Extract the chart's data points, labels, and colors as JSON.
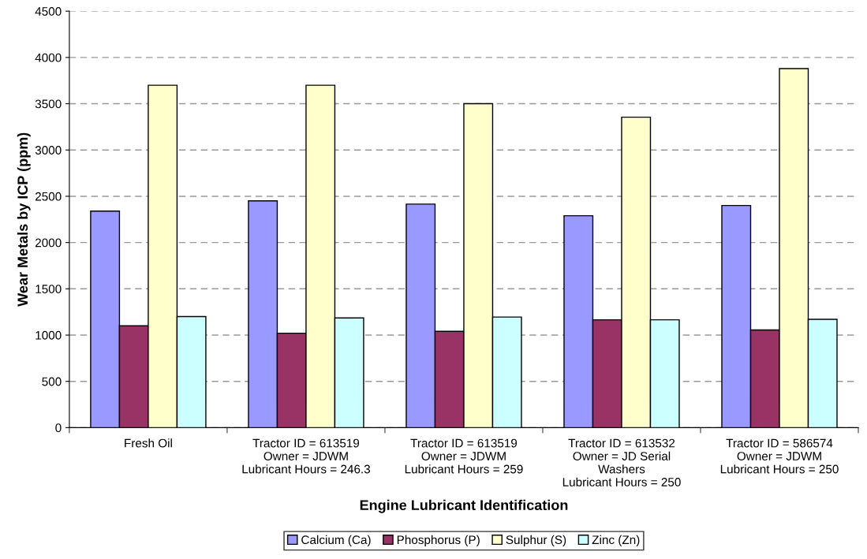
{
  "chart_data": {
    "type": "bar",
    "xlabel": "Engine Lubricant Identification",
    "ylabel": "Wear Metals by ICP (ppm)",
    "categories": [
      "Fresh Oil",
      "Tractor ID = 613519\nOwner = JDWM\nLubricant Hours = 246.3",
      "Tractor ID = 613519\nOwner = JDWM\nLubricant Hours = 259",
      "Tractor ID = 613532\nOwner = JD Serial\nWashers\nLubricant Hours = 250",
      "Tractor ID = 586574\nOwner = JDWM\nLubricant Hours = 250"
    ],
    "series": [
      {
        "name": "Calcium (Ca)",
        "color": "#9999ff",
        "values": [
          2340,
          2450,
          2415,
          2290,
          2400
        ]
      },
      {
        "name": "Phosphorus (P)",
        "color": "#993366",
        "values": [
          1100,
          1020,
          1040,
          1165,
          1055
        ]
      },
      {
        "name": "Sulphur (S)",
        "color": "#ffffcc",
        "values": [
          3700,
          3700,
          3500,
          3355,
          3880
        ]
      },
      {
        "name": "Zinc (Zn)",
        "color": "#ccffff",
        "values": [
          1200,
          1185,
          1195,
          1165,
          1170
        ]
      }
    ],
    "ylim": [
      0,
      4500
    ],
    "yticks": [
      0,
      500,
      1000,
      1500,
      2000,
      2500,
      3000,
      3500,
      4000,
      4500
    ],
    "grid": "y",
    "legend": "bottom"
  }
}
